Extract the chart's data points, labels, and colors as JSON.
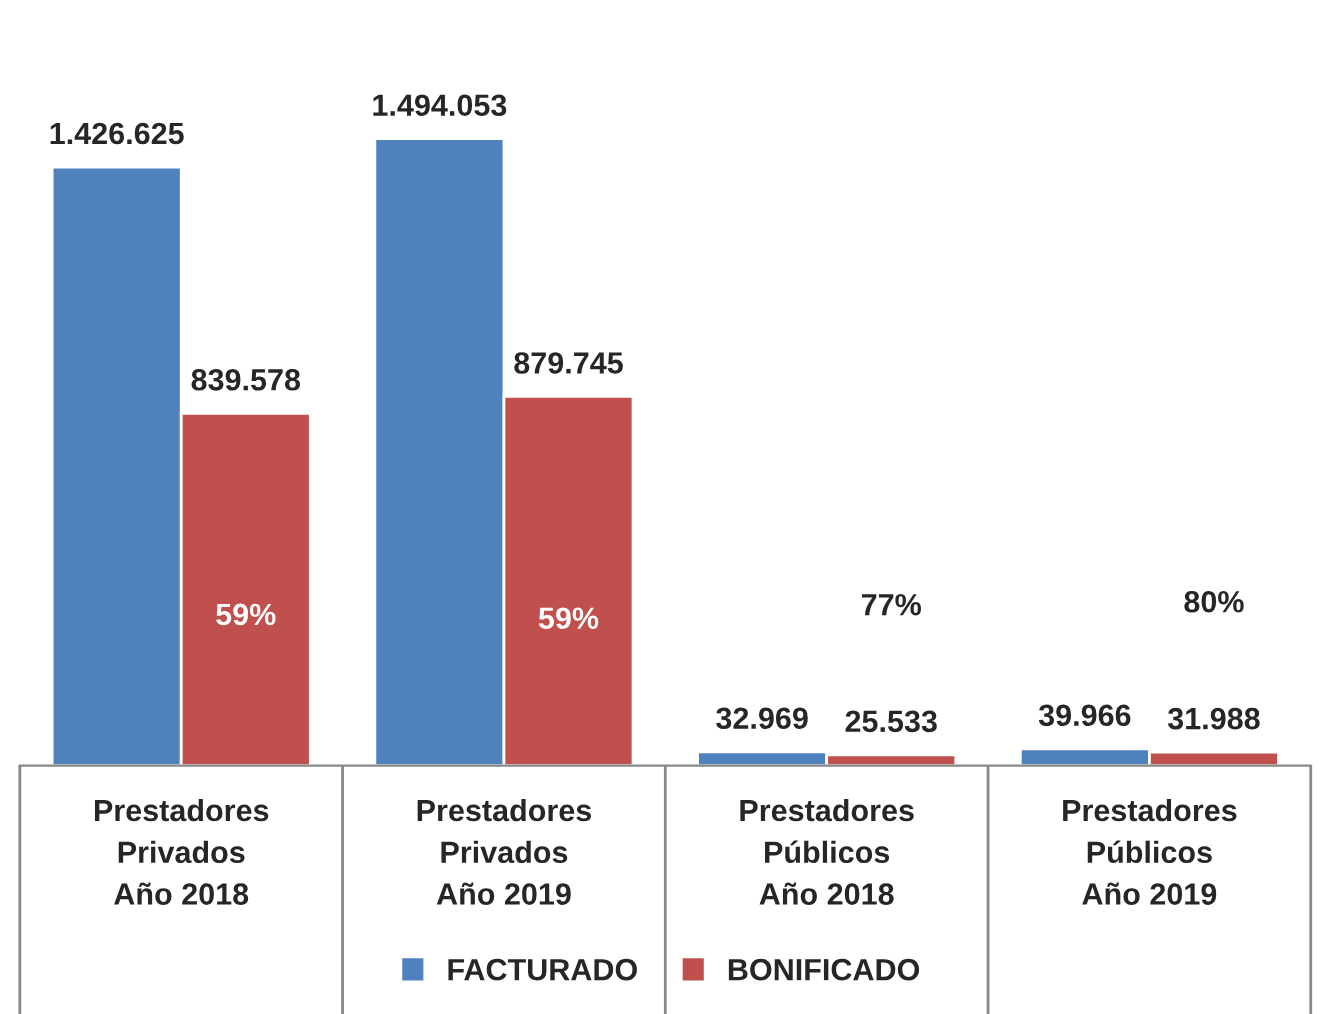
{
  "chart_data": {
    "type": "bar",
    "categories": [
      "Prestadores\nPrivados\nAño 2018",
      "Prestadores\nPrivados\nAño 2019",
      "Prestadores\nPúblicos\nAño 2018",
      "Prestadores\nPúblicos\nAño 2019"
    ],
    "series": [
      {
        "name": "FACTURADO",
        "color": "#4f81bd",
        "values": [
          1426625,
          1494053,
          32969,
          39966
        ],
        "value_labels": [
          "1.426.625",
          "1.494.053",
          "32.969",
          "39.966"
        ]
      },
      {
        "name": "BONIFICADO",
        "color": "#c0504d",
        "values": [
          839578,
          879745,
          25533,
          31988
        ],
        "value_labels": [
          "839.578",
          "879.745",
          "25.533",
          "31.988"
        ]
      }
    ],
    "annotations": [
      {
        "text": "59%",
        "x": "Prestadores\nPrivados\nAño 2018",
        "y": 354000
      },
      {
        "text": "59%",
        "x": "Prestadores\nPrivados\nAño 2019",
        "y": 345000
      },
      "77%",
      "80%"
    ],
    "legend": "bottom"
  }
}
